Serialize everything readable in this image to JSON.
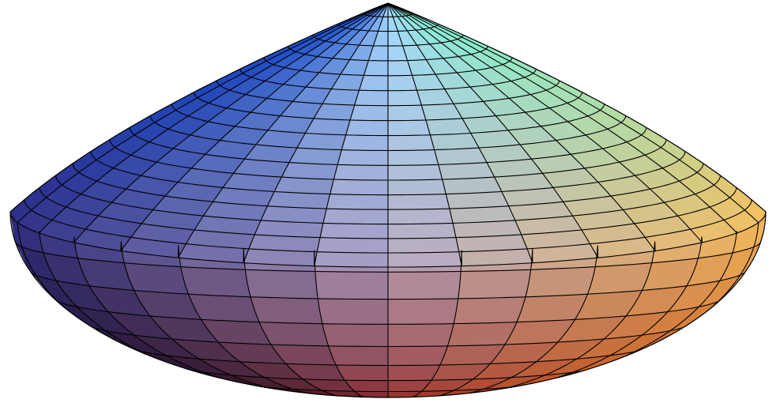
{
  "figure": {
    "subject": "shaded-3d-surface",
    "shape": "spinning-top",
    "mesh": {
      "meridian_count": 32,
      "latitude_bands_upper": 18,
      "latitude_bands_lower": 10
    },
    "colors": {
      "top_left": "#1a4fd0",
      "top_right": "#80f0d8",
      "top_center": "#a6d8ff",
      "equator_left": "#2f2f86",
      "equator_center": "#b4a8c8",
      "equator_right": "#f5c060",
      "bottom_left": "#140000",
      "bottom_center": "#8a1410",
      "bottom_right": "#b83408",
      "background": "#ffffff",
      "mesh_line": "#000000"
    }
  }
}
